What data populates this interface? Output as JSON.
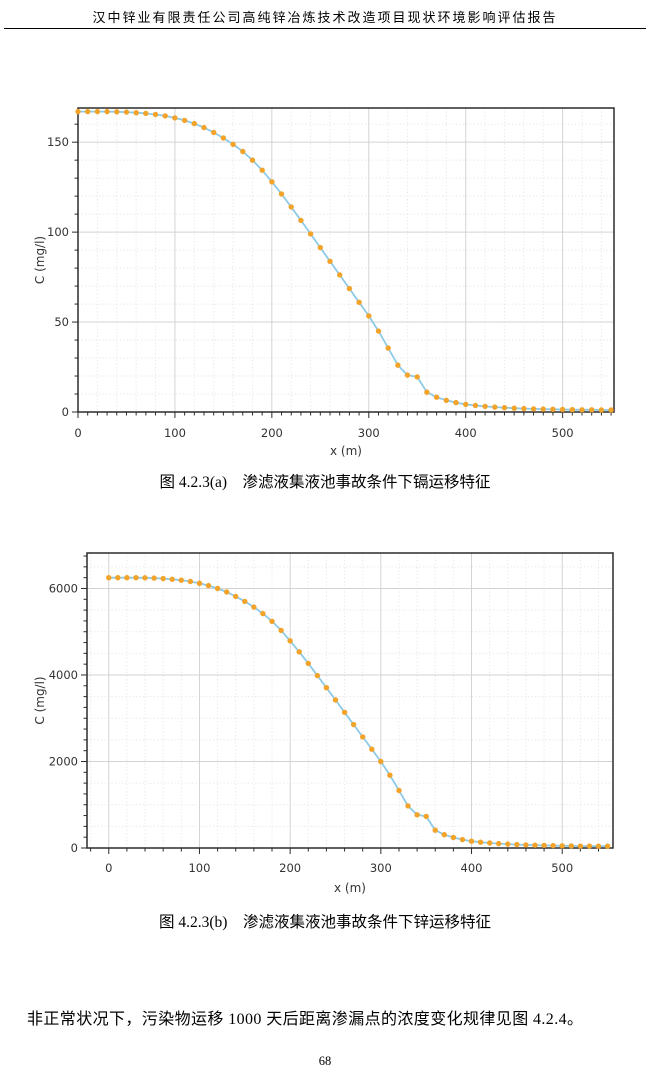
{
  "page": {
    "header_title": "汉中锌业有限责任公司高纯锌冶炼技术改造项目现状环境影响评估报告",
    "body_paragraph": "非正常状况下，污染物运移 1000 天后距离渗漏点的浓度变化规律见图 4.2.4。",
    "page_number": "68"
  },
  "figures": [
    {
      "caption": "图 4.2.3(a)　渗滤液集液池事故条件下镉运移特征"
    },
    {
      "caption": "图 4.2.3(b)　渗滤液集液池事故条件下锌运移特征"
    }
  ],
  "chart_data": [
    {
      "type": "line",
      "title": "",
      "xlabel": "x (m)",
      "ylabel": "C (mg/l)",
      "xlim": [
        0,
        553
      ],
      "ylim": [
        0,
        169
      ],
      "x_major_ticks": [
        0,
        100,
        200,
        300,
        400,
        500
      ],
      "x_minor_tick_step": 10,
      "x_minor_grid_step": 20,
      "y_major_ticks": [
        0,
        50,
        100,
        150
      ],
      "y_minor_tick_step": 10,
      "y_minor_grid_step": 10,
      "grid": true,
      "legend": "none",
      "marker_color": "#F2A32A",
      "line_color": "#8CCAE8",
      "grid_major_color": "#d3d3d3",
      "grid_minor_color": "#e7e7e7",
      "frame_color": "#2b2b2b",
      "text_color": "#333333",
      "x": [
        0,
        10,
        20,
        30,
        40,
        50,
        60,
        70,
        80,
        90,
        100,
        110,
        120,
        130,
        140,
        150,
        160,
        170,
        180,
        190,
        200,
        210,
        220,
        230,
        240,
        250,
        260,
        270,
        280,
        290,
        300,
        310,
        320,
        330,
        340,
        350,
        360,
        370,
        380,
        390,
        400,
        410,
        420,
        430,
        440,
        450,
        460,
        470,
        480,
        490,
        500,
        510,
        520,
        530,
        540,
        550
      ],
      "y": [
        167,
        167,
        167,
        167,
        166.9,
        166.7,
        166.4,
        166.0,
        165.4,
        164.6,
        163.5,
        162.1,
        160.3,
        158.1,
        155.4,
        152.3,
        148.8,
        144.8,
        140.0,
        134.4,
        128.0,
        121.2,
        114.0,
        106.5,
        99.0,
        91.4,
        83.8,
        76.2,
        68.6,
        61.0,
        53.4,
        45.0,
        35.5,
        26.0,
        20.5,
        19.5,
        11.0,
        8.2,
        6.5,
        5.2,
        4.2,
        3.6,
        3.1,
        2.7,
        2.4,
        2.1,
        1.9,
        1.7,
        1.6,
        1.5,
        1.4,
        1.3,
        1.2,
        1.2,
        1.1,
        1.1
      ]
    },
    {
      "type": "line",
      "title": "",
      "xlabel": "x (m)",
      "ylabel": "C (mg/l)",
      "xlim": [
        -24,
        556
      ],
      "ylim": [
        0,
        6820
      ],
      "x_major_ticks": [
        0,
        100,
        200,
        300,
        400,
        500
      ],
      "x_minor_tick_step": 20,
      "x_minor_grid_step": 20,
      "y_major_ticks": [
        0,
        2000,
        4000,
        6000
      ],
      "y_minor_tick_step": 250,
      "y_minor_grid_step": 500,
      "grid": true,
      "legend": "none",
      "marker_color": "#F2A32A",
      "line_color": "#8CCAE8",
      "grid_major_color": "#d3d3d3",
      "grid_minor_color": "#e7e7e7",
      "frame_color": "#2b2b2b",
      "text_color": "#333333",
      "x": [
        0,
        10,
        20,
        30,
        40,
        50,
        60,
        70,
        80,
        90,
        100,
        110,
        120,
        130,
        140,
        150,
        160,
        170,
        180,
        190,
        200,
        210,
        220,
        230,
        240,
        250,
        260,
        270,
        280,
        290,
        300,
        310,
        320,
        330,
        340,
        350,
        360,
        370,
        380,
        390,
        400,
        410,
        420,
        430,
        440,
        450,
        460,
        470,
        480,
        490,
        500,
        510,
        520,
        530,
        540,
        550
      ],
      "y": [
        6250,
        6250,
        6250,
        6250,
        6246,
        6240,
        6228,
        6213,
        6191,
        6161,
        6120,
        6067,
        6000,
        5918,
        5817,
        5701,
        5570,
        5420,
        5240,
        5031,
        4791,
        4537,
        4267,
        3986,
        3706,
        3421,
        3137,
        2852,
        2568,
        2283,
        1999,
        1684,
        1329,
        973,
        767,
        730,
        412,
        307,
        243,
        195,
        157,
        135,
        116,
        101,
        90,
        79,
        71,
        64,
        60,
        56,
        52,
        49,
        45,
        45,
        41,
        41
      ]
    }
  ]
}
